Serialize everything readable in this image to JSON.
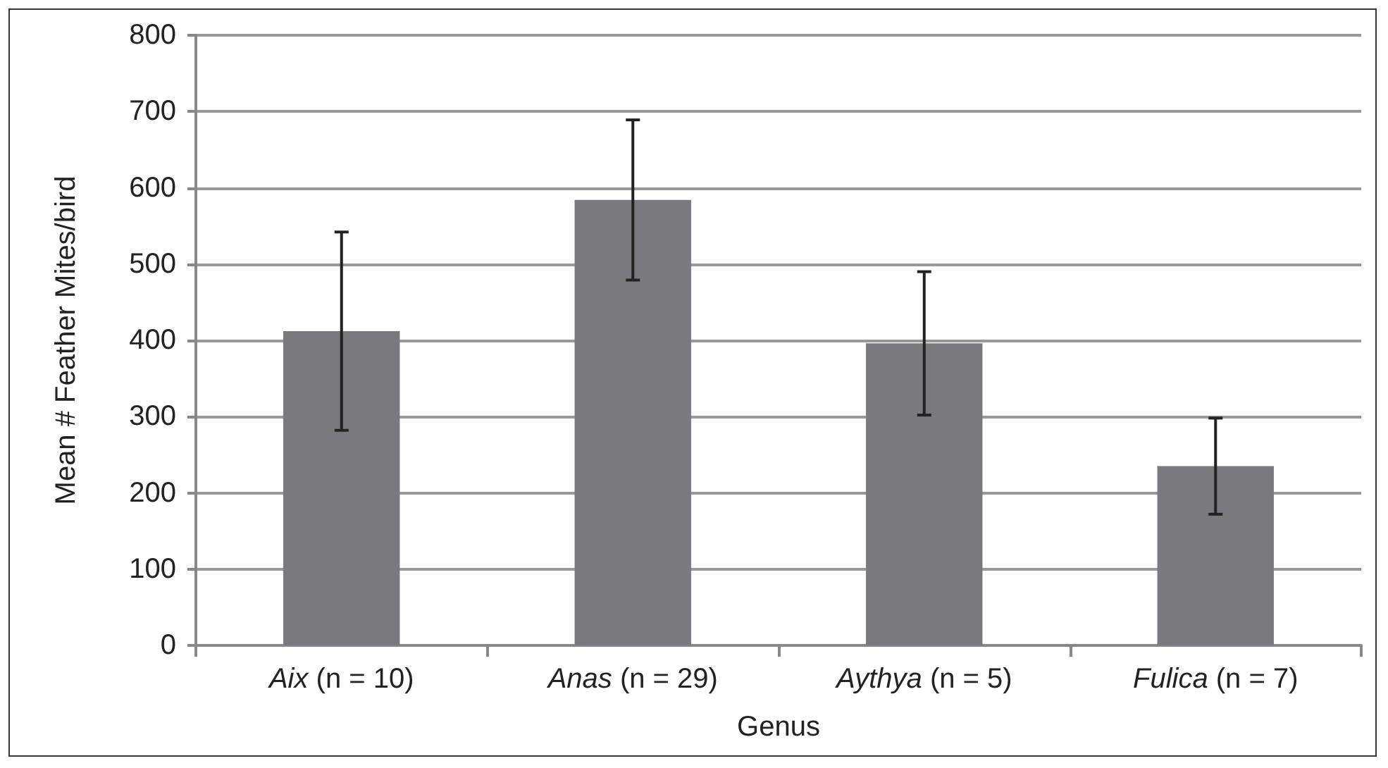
{
  "chart_data": {
    "type": "bar",
    "xlabel": "Genus",
    "ylabel": "Mean # Feather Mites/bird",
    "categories": [
      "Aix (n = 10)",
      "Anas (n = 29)",
      "Aythya (n = 5)",
      "Fulica (n = 7)"
    ],
    "values": [
      412,
      584,
      396,
      235
    ],
    "errors": [
      130,
      105,
      94,
      63
    ],
    "color": "#797a7e",
    "ylim": [
      0,
      800
    ],
    "yticks": [
      0,
      100,
      200,
      300,
      400,
      500,
      600,
      700,
      800
    ],
    "grid": "y"
  }
}
